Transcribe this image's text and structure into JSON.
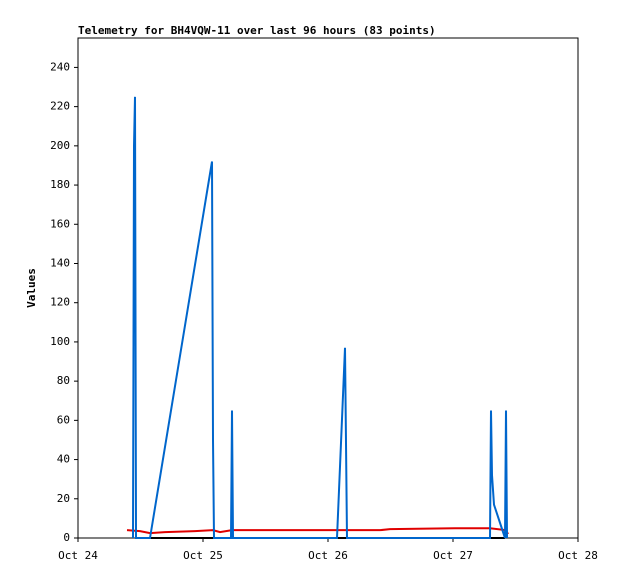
{
  "chart_data": {
    "type": "line",
    "title": "Telemetry for BH4VQW-11 over last 96 hours (83 points)",
    "y_label": "Values",
    "xlim": [
      0,
      4
    ],
    "xticks": [
      {
        "value": 0,
        "label": "Oct 24"
      },
      {
        "value": 1,
        "label": "Oct 25"
      },
      {
        "value": 2,
        "label": "Oct 26"
      },
      {
        "value": 3,
        "label": "Oct 27"
      },
      {
        "value": 4,
        "label": "Oct 28"
      }
    ],
    "ylim": [
      0,
      255
    ],
    "yticks": [
      0,
      20,
      40,
      60,
      80,
      100,
      120,
      140,
      160,
      180,
      200,
      220,
      240
    ],
    "series": [
      {
        "color": "#000000",
        "x": [
          0.576,
          3.416
        ],
        "values": [
          0,
          0
        ]
      },
      {
        "color": "#e00000",
        "x": [
          0.392,
          0.496,
          0.576,
          0.696,
          0.936,
          1.08,
          1.136,
          1.232,
          2.416,
          2.496,
          3.016,
          3.296,
          3.424,
          3.44
        ],
        "values": [
          4,
          3.5,
          2.5,
          3,
          3.5,
          4,
          3,
          4,
          4,
          4.5,
          5,
          5,
          4,
          2
        ]
      },
      {
        "color": "#0066cc",
        "x": [
          0.44,
          0.448,
          0.456,
          0.464,
          0.576,
          1.072,
          1.08,
          1.088,
          1.224,
          1.232,
          1.24,
          2.072,
          2.136,
          2.152,
          3.296,
          3.304,
          3.312,
          3.328,
          3.416,
          3.424,
          3.432
        ],
        "values": [
          0,
          200,
          225,
          0,
          0,
          192,
          50,
          0,
          0,
          65,
          0,
          0,
          97,
          0,
          0,
          65,
          32,
          17,
          0,
          65,
          0
        ]
      }
    ]
  }
}
